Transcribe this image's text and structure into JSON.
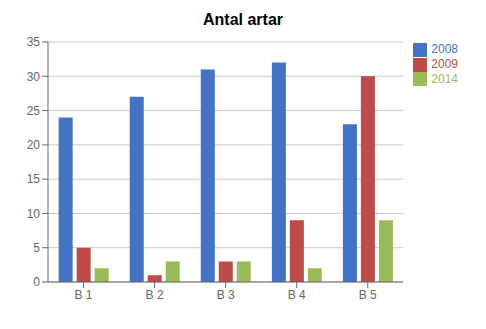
{
  "chart_data": {
    "type": "bar",
    "title": "Antal artar",
    "categories": [
      "B 1",
      "B 2",
      "B 3",
      "B 4",
      "B 5"
    ],
    "series": [
      {
        "name": "2008",
        "color": "#4472C4",
        "values": [
          24,
          27,
          31,
          32,
          23
        ]
      },
      {
        "name": "2009",
        "color": "#BE4B48",
        "values": [
          5,
          1,
          3,
          9,
          30
        ]
      },
      {
        "name": "2014",
        "color": "#9BBB59",
        "values": [
          2,
          3,
          3,
          2,
          9
        ]
      }
    ],
    "ylim": [
      0,
      35
    ],
    "yticks": [
      0,
      5,
      10,
      15,
      20,
      25,
      30,
      35
    ],
    "grid": true,
    "legend": "upper right"
  }
}
